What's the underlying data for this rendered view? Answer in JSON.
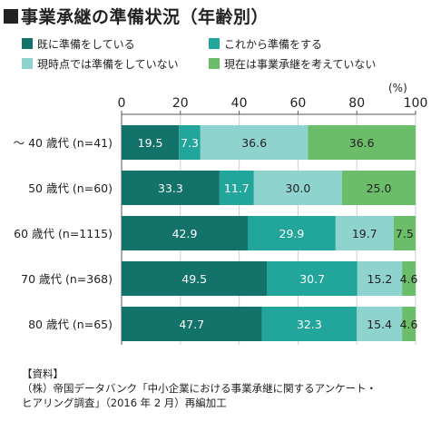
{
  "title": "事業承継の準備状況（年齢別）",
  "unit": "(%)",
  "legend": [
    {
      "label": "既に準備をしている",
      "color": "#13736a"
    },
    {
      "label": "これから準備をする",
      "color": "#22a59a"
    },
    {
      "label": "現時点では準備をしていない",
      "color": "#8fd3cf"
    },
    {
      "label": "現在は事業承継を考えていない",
      "color": "#6cbd6a"
    }
  ],
  "chart_data": {
    "type": "bar",
    "orientation": "horizontal",
    "stacked": true,
    "categories": [
      "～ 40 歳代 (n=41)",
      "50 歳代 (n=60)",
      "60 歳代 (n=1115)",
      "70 歳代 (n=368)",
      "80 歳代 (n=65)"
    ],
    "series": [
      {
        "name": "既に準備をしている",
        "values": [
          19.5,
          33.3,
          42.9,
          49.5,
          47.7
        ]
      },
      {
        "name": "これから準備をする",
        "values": [
          7.3,
          11.7,
          29.9,
          30.7,
          32.3
        ]
      },
      {
        "name": "現時点では準備をしていない",
        "values": [
          36.6,
          30.0,
          19.7,
          15.2,
          15.4
        ]
      },
      {
        "name": "現在は事業承継を考えていない",
        "values": [
          36.6,
          25.0,
          7.5,
          4.6,
          4.6
        ]
      }
    ],
    "data_labels": [
      [
        "19.5",
        "7.3",
        "36.6",
        "36.6"
      ],
      [
        "33.3",
        "11.7",
        "30.0",
        "25.0"
      ],
      [
        "42.9",
        "29.9",
        "19.7",
        "7.5"
      ],
      [
        "49.5",
        "30.7",
        "15.2",
        "4.6"
      ],
      [
        "47.7",
        "32.3",
        "15.4",
        "4.6"
      ]
    ],
    "xlim": [
      0,
      100
    ],
    "xticks": [
      "0",
      "20",
      "40",
      "60",
      "80",
      "100"
    ],
    "grid": true
  },
  "source": {
    "heading": "【資料】",
    "line1": "（株）帝国データバンク「中小企業における事業承継に関するアンケート・",
    "line2": "ヒアリング調査」（2016 年 2 月）再編加工"
  }
}
